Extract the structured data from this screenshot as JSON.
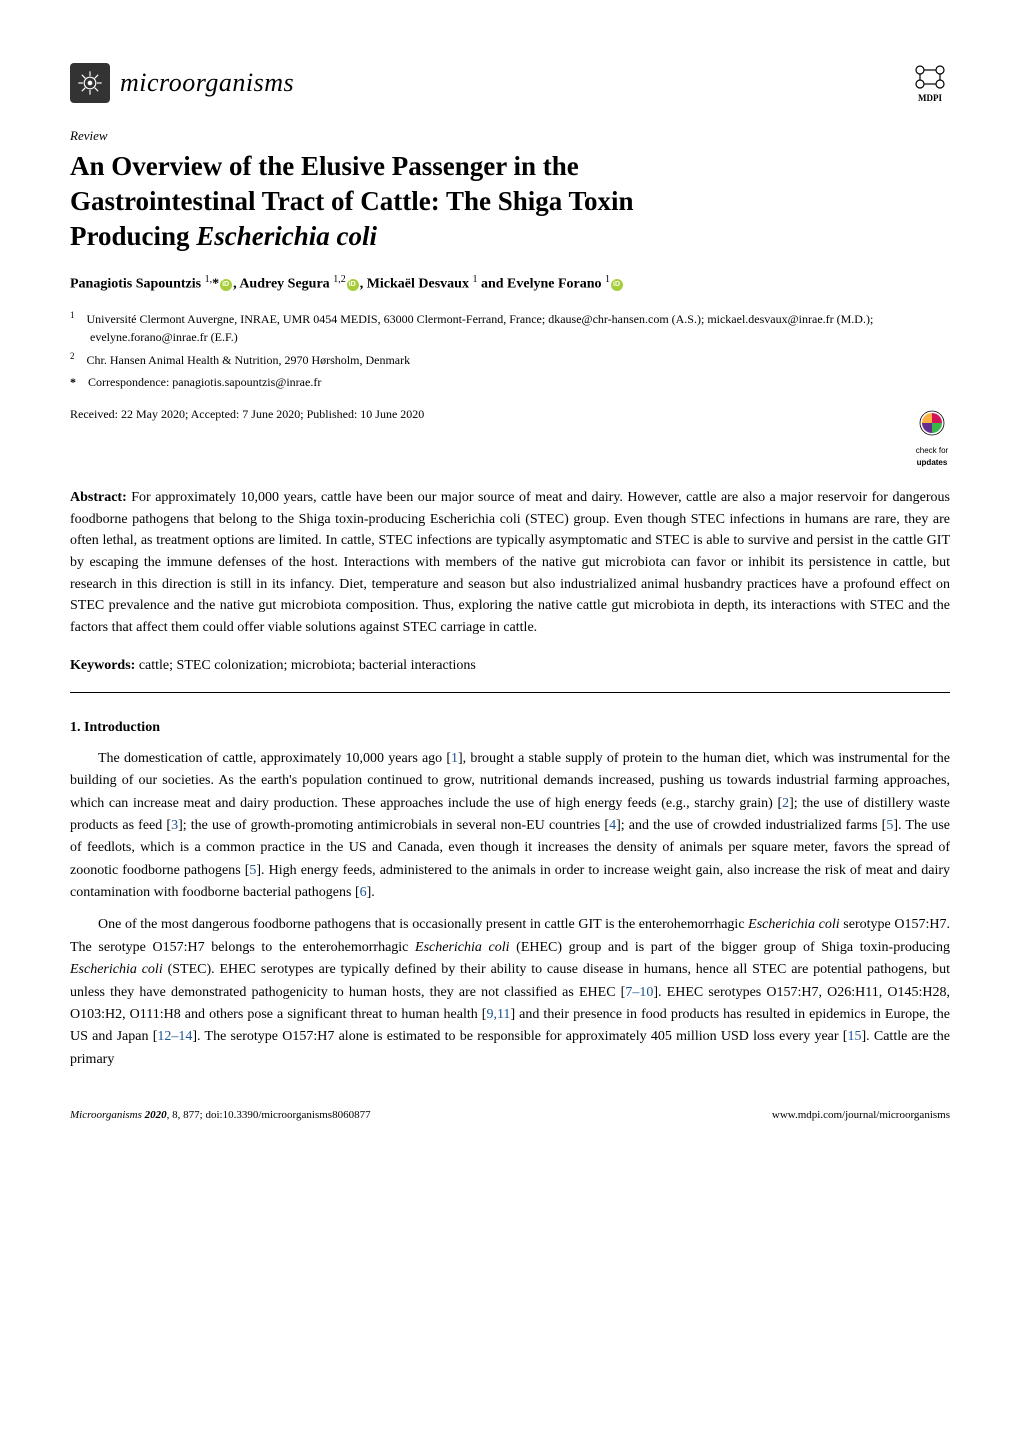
{
  "header": {
    "journal_name": "microorganisms",
    "mdpi_label": "MDPI"
  },
  "article": {
    "type_label": "Review",
    "title_line1": "An Overview of the Elusive Passenger in the",
    "title_line2": "Gastrointestinal Tract of Cattle: The Shiga Toxin",
    "title_line3": "Producing ",
    "title_line3_em": "Escherichia coli",
    "authors_html": "Panagiotis Sapountzis <sup>1,</sup>* , Audrey Segura <sup>1,2</sup> , Mickaël Desvaux <sup>1</sup> and Evelyne Forano <sup>1</sup>",
    "author1": "Panagiotis Sapountzis ",
    "author1_sup": "1,",
    "author1_ast": "*",
    "author2": ", Audrey Segura ",
    "author2_sup": "1,2",
    "author3": ", Mickaël Desvaux ",
    "author3_sup": "1",
    "author4": " and Evelyne Forano ",
    "author4_sup": "1",
    "affil1_num": "1",
    "affil1": "Université Clermont Auvergne, INRAE, UMR 0454 MEDIS, 63000 Clermont-Ferrand, France; dkause@chr-hansen.com (A.S.); mickael.desvaux@inrae.fr (M.D.); evelyne.forano@inrae.fr (E.F.)",
    "affil2_num": "2",
    "affil2": "Chr. Hansen Animal Health & Nutrition, 2970 Hørsholm, Denmark",
    "corr_label": "*",
    "corr": "Correspondence: panagiotis.sapountzis@inrae.fr",
    "dates": "Received: 22 May 2020; Accepted: 7 June 2020; Published: 10 June 2020",
    "check_updates_label1": "check for",
    "check_updates_label2": "updates"
  },
  "abstract": {
    "label": "Abstract:",
    "text": " For approximately 10,000 years, cattle have been our major source of meat and dairy. However, cattle are also a major reservoir for dangerous foodborne pathogens that belong to the Shiga toxin-producing Escherichia coli (STEC) group. Even though STEC infections in humans are rare, they are often lethal, as treatment options are limited. In cattle, STEC infections are typically asymptomatic and STEC is able to survive and persist in the cattle GIT by escaping the immune defenses of the host. Interactions with members of the native gut microbiota can favor or inhibit its persistence in cattle, but research in this direction is still in its infancy. Diet, temperature and season but also industrialized animal husbandry practices have a profound effect on STEC prevalence and the native gut microbiota composition. Thus, exploring the native cattle gut microbiota in depth, its interactions with STEC and the factors that affect them could offer viable solutions against STEC carriage in cattle."
  },
  "keywords": {
    "label": "Keywords:",
    "text": " cattle; STEC colonization; microbiota; bacterial interactions"
  },
  "section1": {
    "heading": "1. Introduction",
    "p1": "The domestication of cattle, approximately 10,000 years ago [1], brought a stable supply of protein to the human diet, which was instrumental for the building of our societies. As the earth's population continued to grow, nutritional demands increased, pushing us towards industrial farming approaches, which can increase meat and dairy production. These approaches include the use of high energy feeds (e.g., starchy grain) [2]; the use of distillery waste products as feed [3]; the use of growth-promoting antimicrobials in several non-EU countries [4]; and the use of crowded industrialized farms [5]. The use of feedlots, which is a common practice in the US and Canada, even though it increases the density of animals per square meter, favors the spread of zoonotic foodborne pathogens [5]. High energy feeds, administered to the animals in order to increase weight gain, also increase the risk of meat and dairy contamination with foodborne bacterial pathogens [6].",
    "p2_a": "One of the most dangerous foodborne pathogens that is occasionally present in cattle GIT is the enterohemorrhagic ",
    "p2_em1": "Escherichia coli",
    "p2_b": " serotype O157:H7. The serotype O157:H7 belongs to the enterohemorrhagic ",
    "p2_em2": "Escherichia coli",
    "p2_c": " (EHEC) group and is part of the bigger group of Shiga toxin-producing ",
    "p2_em3": "Escherichia coli",
    "p2_d": " (STEC). EHEC serotypes are typically defined by their ability to cause disease in humans, hence all STEC are potential pathogens, but unless they have demonstrated pathogenicity to human hosts, they are not classified as EHEC [7–10]. EHEC serotypes O157:H7, O26:H11, O145:H28, O103:H2, O111:H8 and others pose a significant threat to human health [9,11] and their presence in food products has resulted in epidemics in Europe, the US and Japan [12–14]. The serotype O157:H7 alone is estimated to be responsible for approximately 405 million USD loss every year [15]. Cattle are the primary"
  },
  "footer": {
    "left_journal": "Microorganisms ",
    "left_year": "2020",
    "left_rest": ", 8, 877; doi:10.3390/microorganisms8060877",
    "right": "www.mdpi.com/journal/microorganisms"
  },
  "colors": {
    "ref_link": "#1a5490",
    "orcid": "#a6ce39",
    "text": "#000000",
    "bg": "#ffffff"
  }
}
